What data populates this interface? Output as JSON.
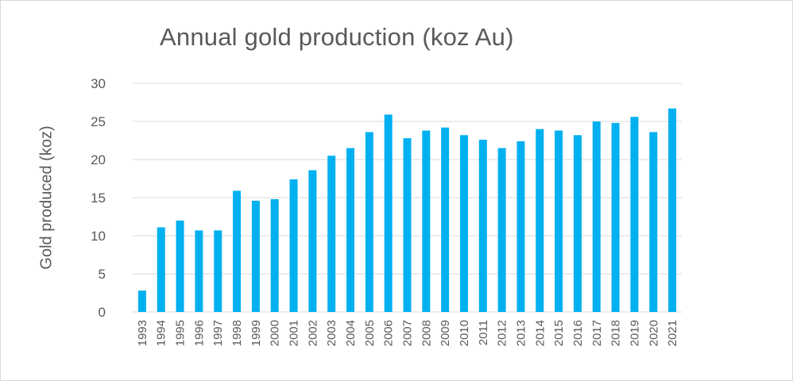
{
  "chart_data": {
    "type": "bar",
    "title": "Annual gold production (koz Au)",
    "xlabel": "",
    "ylabel": "Gold produced (koz)",
    "ylim": [
      0,
      30
    ],
    "yticks": [
      0,
      5,
      10,
      15,
      20,
      25,
      30
    ],
    "grid": true,
    "legend": "none",
    "bar_color": "#00b0f0",
    "grid_color": "#d9d9d9",
    "categories": [
      "1993",
      "1994",
      "1995",
      "1996",
      "1997",
      "1998",
      "1999",
      "2000",
      "2001",
      "2002",
      "2003",
      "2004",
      "2005",
      "2006",
      "2007",
      "2008",
      "2009",
      "2010",
      "2011",
      "2012",
      "2013",
      "2014",
      "2015",
      "2016",
      "2017",
      "2018",
      "2019",
      "2020",
      "2021"
    ],
    "values": [
      2.8,
      11.1,
      12.0,
      10.7,
      10.7,
      15.9,
      14.6,
      14.8,
      17.4,
      18.6,
      20.5,
      21.5,
      23.6,
      25.9,
      22.8,
      23.8,
      24.2,
      23.2,
      22.6,
      21.5,
      22.4,
      24.0,
      23.8,
      23.2,
      25.0,
      24.8,
      25.6,
      23.6,
      26.7
    ]
  }
}
